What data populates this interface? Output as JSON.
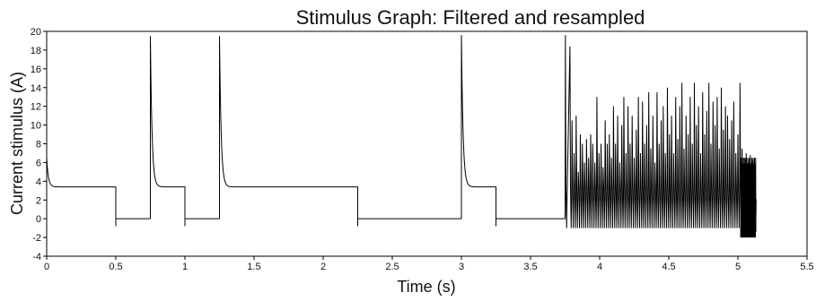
{
  "chart_data": {
    "type": "line",
    "title": "Stimulus Graph: Filtered and resampled",
    "xlabel": "Time (s)",
    "ylabel": "Current stimulus (A)",
    "xlim": [
      0,
      5.5
    ],
    "ylim": [
      -4,
      20
    ],
    "xticks": [
      0,
      0.5,
      1,
      1.5,
      2,
      2.5,
      3,
      3.5,
      4,
      4.5,
      5,
      5.5
    ],
    "xtick_labels": [
      "0",
      "0.5",
      "1",
      "1.5",
      "2",
      "2.5",
      "3",
      "3.5",
      "4",
      "4.5",
      "5",
      "5.5"
    ],
    "yticks": [
      -4,
      -2,
      0,
      2,
      4,
      6,
      8,
      10,
      12,
      14,
      16,
      18,
      20
    ],
    "ytick_labels": [
      "-4",
      "-2",
      "0",
      "2",
      "4",
      "6",
      "8",
      "10",
      "12",
      "14",
      "16",
      "18",
      "20"
    ],
    "grid": false,
    "legend": "none",
    "line_color": "#000000",
    "segments": [
      {
        "kind": "step",
        "t_start": 0.0,
        "t_end": 0.5,
        "level": 3.4,
        "spike_peak": 6.5
      },
      {
        "kind": "flat",
        "t_start": 0.5,
        "t_end": 0.75,
        "level": 0.0,
        "undershoot": -0.8
      },
      {
        "kind": "step",
        "t_start": 0.75,
        "t_end": 1.0,
        "level": 3.4,
        "spike_peak": 19.5
      },
      {
        "kind": "flat",
        "t_start": 1.0,
        "t_end": 1.25,
        "level": 0.0,
        "undershoot": -0.8
      },
      {
        "kind": "step",
        "t_start": 1.25,
        "t_end": 2.25,
        "level": 3.4,
        "spike_peak": 19.5
      },
      {
        "kind": "flat",
        "t_start": 2.25,
        "t_end": 3.0,
        "level": 0.0,
        "undershoot": -0.8
      },
      {
        "kind": "step",
        "t_start": 3.0,
        "t_end": 3.25,
        "level": 3.4,
        "spike_peak": 19.6
      },
      {
        "kind": "flat",
        "t_start": 3.25,
        "t_end": 3.75,
        "level": 0.0,
        "undershoot": -0.8
      }
    ],
    "fast_spikes": {
      "t_start": 3.75,
      "t_end": 5.13,
      "baseline_high": 3.5,
      "baseline_low": -1.0,
      "peaks": [
        [
          3.752,
          19.6
        ],
        [
          3.785,
          18.4
        ],
        [
          3.8,
          10.5
        ],
        [
          3.815,
          7.0
        ],
        [
          3.83,
          11.0
        ],
        [
          3.845,
          5.0
        ],
        [
          3.86,
          9.0
        ],
        [
          3.875,
          8.0
        ],
        [
          3.89,
          6.0
        ],
        [
          3.905,
          8.5
        ],
        [
          3.92,
          6.5
        ],
        [
          3.935,
          9.0
        ],
        [
          3.95,
          8.0
        ],
        [
          3.965,
          6.0
        ],
        [
          3.98,
          13.0
        ],
        [
          3.995,
          7.0
        ],
        [
          4.01,
          8.0
        ],
        [
          4.025,
          5.5
        ],
        [
          4.04,
          10.5
        ],
        [
          4.055,
          8.0
        ],
        [
          4.07,
          9.0
        ],
        [
          4.085,
          6.5
        ],
        [
          4.1,
          12.0
        ],
        [
          4.115,
          8.0
        ],
        [
          4.13,
          11.0
        ],
        [
          4.145,
          6.0
        ],
        [
          4.16,
          10.0
        ],
        [
          4.175,
          13.0
        ],
        [
          4.19,
          7.0
        ],
        [
          4.205,
          12.0
        ],
        [
          4.22,
          8.0
        ],
        [
          4.235,
          11.0
        ],
        [
          4.25,
          6.5
        ],
        [
          4.265,
          9.5
        ],
        [
          4.28,
          13.0
        ],
        [
          4.295,
          7.0
        ],
        [
          4.31,
          12.5
        ],
        [
          4.325,
          8.0
        ],
        [
          4.34,
          10.0
        ],
        [
          4.355,
          13.5
        ],
        [
          4.37,
          7.5
        ],
        [
          4.385,
          11.0
        ],
        [
          4.4,
          6.0
        ],
        [
          4.415,
          13.5
        ],
        [
          4.43,
          8.0
        ],
        [
          4.445,
          10.5
        ],
        [
          4.46,
          12.0
        ],
        [
          4.475,
          7.0
        ],
        [
          4.49,
          14.0
        ],
        [
          4.505,
          9.0
        ],
        [
          4.52,
          11.0
        ],
        [
          4.535,
          7.0
        ],
        [
          4.55,
          13.0
        ],
        [
          4.565,
          8.5
        ],
        [
          4.58,
          12.0
        ],
        [
          4.595,
          14.5
        ],
        [
          4.61,
          7.5
        ],
        [
          4.625,
          11.0
        ],
        [
          4.64,
          9.0
        ],
        [
          4.655,
          13.0
        ],
        [
          4.67,
          8.0
        ],
        [
          4.685,
          14.5
        ],
        [
          4.7,
          10.0
        ],
        [
          4.715,
          12.0
        ],
        [
          4.73,
          7.0
        ],
        [
          4.745,
          13.5
        ],
        [
          4.76,
          9.0
        ],
        [
          4.775,
          11.5
        ],
        [
          4.79,
          14.5
        ],
        [
          4.805,
          8.0
        ],
        [
          4.82,
          12.5
        ],
        [
          4.835,
          10.0
        ],
        [
          4.85,
          13.0
        ],
        [
          4.865,
          7.5
        ],
        [
          4.88,
          14.0
        ],
        [
          4.895,
          9.5
        ],
        [
          4.91,
          12.0
        ],
        [
          4.925,
          11.0
        ],
        [
          4.94,
          8.5
        ],
        [
          4.955,
          10.5
        ],
        [
          4.97,
          12.5
        ],
        [
          4.985,
          7.0
        ],
        [
          5.0,
          9.0
        ],
        [
          5.015,
          14.5
        ],
        [
          5.03,
          7.5
        ],
        [
          5.045,
          6.5
        ],
        [
          5.06,
          7.0
        ],
        [
          5.075,
          6.0
        ],
        [
          5.09,
          6.8
        ],
        [
          5.105,
          6.2
        ],
        [
          5.12,
          6.5
        ]
      ],
      "dense_burst": {
        "t_start": 5.02,
        "t_end": 5.13,
        "high": 6.5,
        "low": -2.0
      }
    }
  }
}
